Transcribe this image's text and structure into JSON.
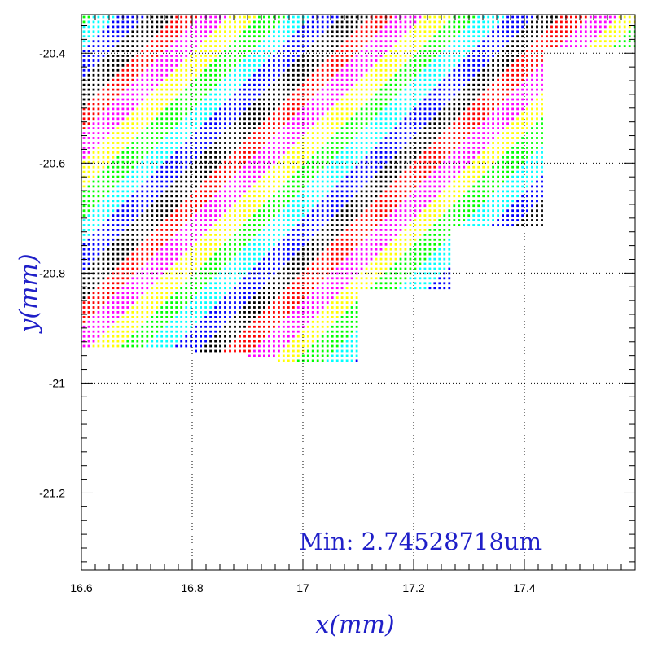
{
  "chart_data": {
    "type": "scatter",
    "title": "",
    "xlabel": "x(mm)",
    "ylabel": "y(mm)",
    "xlim": [
      16.6,
      17.6
    ],
    "ylim": [
      -21.34,
      -20.33
    ],
    "x_ticks": [
      16.6,
      16.8,
      17.0,
      17.2,
      17.4
    ],
    "x_tick_labels": [
      "16.6",
      "16.8",
      "17",
      "17.2",
      "17.4"
    ],
    "y_ticks": [
      -20.4,
      -20.6,
      -20.8,
      -21.0,
      -21.2
    ],
    "y_tick_labels": [
      "-20.4",
      "-20.6",
      "-20.8",
      "-21",
      "-21.2"
    ],
    "grid": true,
    "annotation": "Min: 2.74528718um",
    "pixel_pitch_mm": 0.0088,
    "band_width_mm": 0.05,
    "band_colors": [
      "#ff0000",
      "#ff00ff",
      "#ffff00",
      "#00ff00",
      "#00ffff",
      "#0000ff",
      "#000000"
    ],
    "region_columns": [
      {
        "x_from": 16.6,
        "x_to": 16.8,
        "y_bottom": -20.94
      },
      {
        "x_from": 16.8,
        "x_to": 16.9,
        "y_bottom": -20.95
      },
      {
        "x_from": 16.9,
        "x_to": 16.95,
        "y_bottom": -20.955
      },
      {
        "x_from": 16.95,
        "x_to": 17.1,
        "y_bottom": -20.96
      },
      {
        "x_from": 17.1,
        "x_to": 17.27,
        "y_bottom": -20.83
      },
      {
        "x_from": 17.27,
        "x_to": 17.31,
        "y_bottom": -20.72
      },
      {
        "x_from": 17.31,
        "x_to": 17.44,
        "y_bottom": -20.715
      },
      {
        "x_from": 17.44,
        "x_to": 17.6,
        "y_bottom": -20.395
      }
    ]
  }
}
